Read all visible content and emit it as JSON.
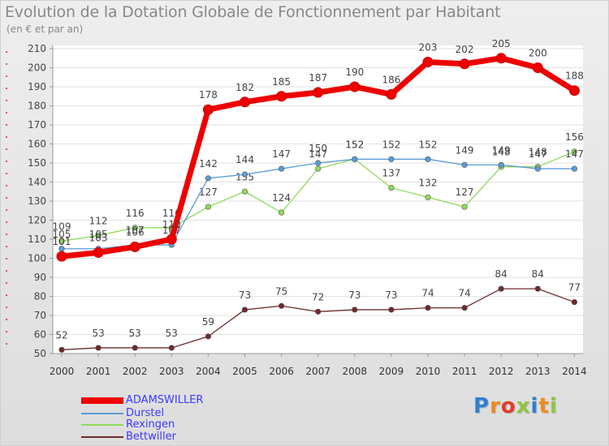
{
  "chart_data": {
    "type": "line",
    "title": "Evolution de la Dotation Globale de Fonctionnement par Habitant",
    "subtitle": "(en € et par an)",
    "x": [
      "2000",
      "2001",
      "2002",
      "2003",
      "2004",
      "2005",
      "2006",
      "2007",
      "2008",
      "2009",
      "2010",
      "2011",
      "2012",
      "2013",
      "2014"
    ],
    "ylim": [
      50,
      210
    ],
    "yticks": [
      50,
      60,
      70,
      80,
      90,
      100,
      110,
      120,
      130,
      140,
      150,
      160,
      170,
      180,
      190,
      200,
      210
    ],
    "series": [
      {
        "name": "Bettwiller",
        "color": "#6e2a2c",
        "values": [
          52,
          53,
          53,
          53,
          59,
          73,
          75,
          72,
          73,
          73,
          74,
          74,
          84,
          84,
          77
        ],
        "labels": [
          "52",
          "53",
          "53",
          "53",
          "59",
          "73",
          "75",
          "72",
          "73",
          "73",
          "74",
          "74",
          "84",
          "84",
          "77"
        ]
      },
      {
        "name": "Rexingen",
        "color": "#8fdb5a",
        "values": [
          109,
          112,
          116,
          116,
          127,
          135,
          124,
          147,
          152,
          137,
          132,
          127,
          148,
          148,
          156
        ],
        "labels": [
          "109",
          "112",
          "116",
          "116",
          "127",
          "135",
          "124",
          "147",
          "152",
          "137",
          "132",
          "127",
          "148",
          "148",
          "156"
        ]
      },
      {
        "name": "Durstel",
        "color": "#5b9bd5",
        "values": [
          105,
          105,
          107,
          107,
          142,
          144,
          147,
          150,
          152,
          152,
          152,
          149,
          149,
          147,
          147
        ],
        "labels": [
          "105",
          "105",
          "107",
          "107",
          "142",
          "144",
          "147",
          "150",
          "152",
          "152",
          "152",
          "149",
          "149",
          "147",
          "147"
        ]
      },
      {
        "name": "ADAMSWILLER",
        "color": "#ee0000",
        "values": [
          101,
          103,
          106,
          110,
          178,
          182,
          185,
          187,
          190,
          186,
          203,
          202,
          205,
          200,
          188
        ],
        "labels": [
          "101",
          "103",
          "106",
          "110",
          "178",
          "182",
          "185",
          "187",
          "190",
          "186",
          "203",
          "202",
          "205",
          "200",
          "188"
        ]
      }
    ],
    "legend": [
      {
        "name": "ADAMSWILLER",
        "color": "#ee0000",
        "text_color": "#3b3bff"
      },
      {
        "name": "Durstel",
        "color": "#5b9bd5",
        "text_color": "#3b3bff"
      },
      {
        "name": "Rexingen",
        "color": "#8fdb5a",
        "text_color": "#3b3bff"
      },
      {
        "name": "Bettwiller",
        "color": "#6e2a2c",
        "text_color": "#3b3bff"
      }
    ]
  },
  "logo": {
    "letters": [
      "P",
      "r",
      "o",
      "x",
      "i",
      "t",
      "i"
    ],
    "colors": [
      "#2e7fd0",
      "#f08a1c",
      "#e23c2a",
      "#8ec63f",
      "#2e7fd0",
      "#f08a1c",
      "#8ec63f"
    ]
  }
}
